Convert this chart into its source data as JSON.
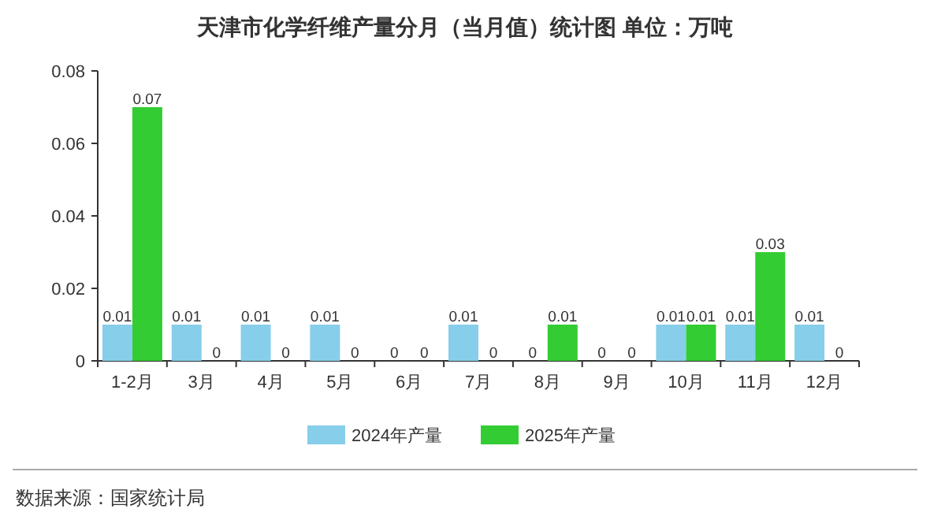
{
  "chart_data": {
    "type": "bar",
    "title": "天津市化学纤维产量分月（当月值）统计图 单位：万吨",
    "categories": [
      "1-2月",
      "3月",
      "4月",
      "5月",
      "6月",
      "7月",
      "8月",
      "9月",
      "10月",
      "11月",
      "12月"
    ],
    "series": [
      {
        "name": "2024年产量",
        "color": "#87ceeb",
        "values": [
          0.01,
          0.01,
          0.01,
          0.01,
          0,
          0.01,
          0,
          0,
          0.01,
          0.01,
          0.01
        ]
      },
      {
        "name": "2025年产量",
        "color": "#33cc33",
        "values": [
          0.07,
          0,
          0,
          0,
          0,
          0,
          0.01,
          0,
          0.01,
          0.03,
          0
        ]
      }
    ],
    "ylim": [
      0,
      0.08
    ],
    "yticks": [
      0,
      0.02,
      0.04,
      0.06,
      0.08
    ],
    "data_labels": true,
    "legend": "bottom",
    "grid": false,
    "annotations": [
      "数据来源：国家统计局"
    ]
  }
}
